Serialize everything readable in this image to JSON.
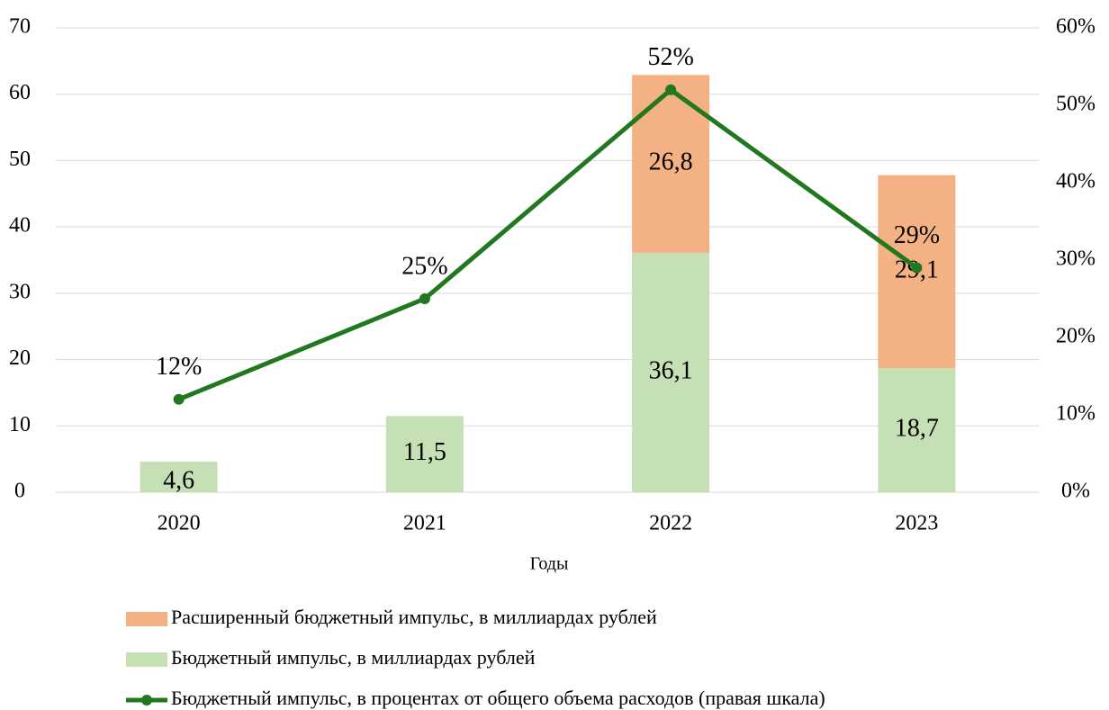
{
  "chart_data": {
    "type": "bar",
    "categories": [
      "2020",
      "2021",
      "2022",
      "2023"
    ],
    "x_label": "Годы",
    "series": [
      {
        "name": "Бюджетный импульс, в миллиардах рублей",
        "color": "#c5e0b4",
        "values": [
          4.6,
          11.5,
          36.1,
          18.7
        ],
        "value_labels": [
          "4,6",
          "11,5",
          "36,1",
          "18,7"
        ]
      },
      {
        "name": "Расширенный бюджетный импульс, в миллиардах рублей",
        "color": "#f4b183",
        "values": [
          null,
          null,
          26.8,
          29.1
        ],
        "value_labels": [
          null,
          null,
          "26,8",
          "29,1"
        ]
      },
      {
        "name": "Бюджетный импульс, в процентах от общего объема расходов (правая шкала)",
        "color": "#217821",
        "type": "line",
        "axis": "y2",
        "values": [
          12,
          25,
          52,
          29
        ],
        "value_labels": [
          "12%",
          "25%",
          "52%",
          "29%"
        ]
      }
    ],
    "stacked": true,
    "ylim": [
      0,
      70
    ],
    "yticks": [
      0,
      10,
      20,
      30,
      40,
      50,
      60,
      70
    ],
    "y2lim": [
      0,
      60
    ],
    "y2ticks": [
      {
        "value": 0,
        "label": "0%"
      },
      {
        "value": 10,
        "label": "10%"
      },
      {
        "value": 20,
        "label": "20%"
      },
      {
        "value": 30,
        "label": "30%"
      },
      {
        "value": 40,
        "label": "40%"
      },
      {
        "value": 50,
        "label": "50%"
      },
      {
        "value": 60,
        "label": "60%"
      }
    ],
    "grid": true
  }
}
